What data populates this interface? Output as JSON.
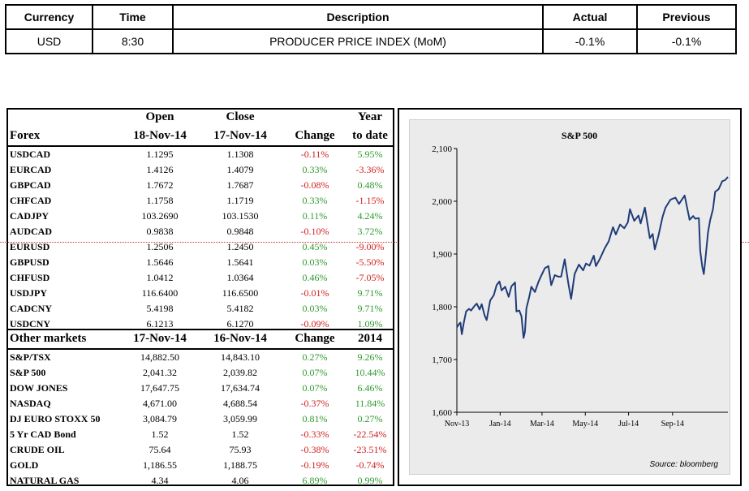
{
  "calendar": {
    "headers": [
      "Currency",
      "Time",
      "Description",
      "Actual",
      "Previous"
    ],
    "row": [
      "USD",
      "8:30",
      "PRODUCER PRICE INDEX (MoM)",
      "-0.1%",
      "-0.1%"
    ]
  },
  "forex": {
    "header_top": {
      "open": "Open",
      "close": "Close",
      "year": "Year"
    },
    "header": {
      "label": "Forex",
      "open": "18-Nov-14",
      "close": "17-Nov-14",
      "change": "Change",
      "ytd": "to date"
    },
    "rows": [
      [
        "USDCAD",
        "1.1295",
        "1.1308",
        "-0.11%",
        "5.95%"
      ],
      [
        "EURCAD",
        "1.4126",
        "1.4079",
        "0.33%",
        "-3.36%"
      ],
      [
        "GBPCAD",
        "1.7672",
        "1.7687",
        "-0.08%",
        "0.48%"
      ],
      [
        "CHFCAD",
        "1.1758",
        "1.1719",
        "0.33%",
        "-1.15%"
      ],
      [
        "CADJPY",
        "103.2690",
        "103.1530",
        "0.11%",
        "4.24%"
      ],
      [
        "AUDCAD",
        "0.9838",
        "0.9848",
        "-0.10%",
        "3.72%"
      ],
      [
        "EURUSD",
        "1.2506",
        "1.2450",
        "0.45%",
        "-9.00%"
      ],
      [
        "GBPUSD",
        "1.5646",
        "1.5641",
        "0.03%",
        "-5.50%"
      ],
      [
        "CHFUSD",
        "1.0412",
        "1.0364",
        "0.46%",
        "-7.05%"
      ],
      [
        "USDJPY",
        "116.6400",
        "116.6500",
        "-0.01%",
        "9.71%"
      ],
      [
        "CADCNY",
        "5.4198",
        "5.4182",
        "0.03%",
        "9.71%"
      ],
      [
        "USDCNY",
        "6.1213",
        "6.1270",
        "-0.09%",
        "1.09%"
      ]
    ]
  },
  "other": {
    "header": {
      "label": "Other markets",
      "open": "17-Nov-14",
      "close": "16-Nov-14",
      "change": "Change",
      "ytd": "2014"
    },
    "rows": [
      [
        "S&P/TSX",
        "14,882.50",
        "14,843.10",
        "0.27%",
        "9.26%"
      ],
      [
        "S&P 500",
        "2,041.32",
        "2,039.82",
        "0.07%",
        "10.44%"
      ],
      [
        "DOW JONES",
        "17,647.75",
        "17,634.74",
        "0.07%",
        "6.46%"
      ],
      [
        "NASDAQ",
        "4,671.00",
        "4,688.54",
        "-0.37%",
        "11.84%"
      ],
      [
        "DJ EURO STOXX 50",
        "3,084.79",
        "3,059.99",
        "0.81%",
        "0.27%"
      ],
      [
        "5 Yr CAD Bond",
        "1.52",
        "1.52",
        "-0.33%",
        "-22.54%"
      ],
      [
        "CRUDE OIL",
        "75.64",
        "75.93",
        "-0.38%",
        "-23.51%"
      ],
      [
        "GOLD",
        "1,186.55",
        "1,188.75",
        "-0.19%",
        "-0.74%"
      ],
      [
        "NATURAL GAS",
        "4.34",
        "4.06",
        "6.89%",
        "0.99%"
      ]
    ]
  },
  "colors": {
    "positive": "#2e9a2e",
    "negative": "#d11f1f",
    "line": "#1f3c78",
    "dotted_guide": "#d93030"
  },
  "chart": {
    "source": "Source: bloomberg"
  },
  "chart_data": {
    "type": "line",
    "title": "S&P 500",
    "xlabel": "",
    "ylabel": "",
    "ylim": [
      1600,
      2100
    ],
    "yticks": [
      1600,
      1700,
      1800,
      1900,
      2000,
      2100
    ],
    "ytick_labels": [
      "1,600",
      "1,700",
      "1,800",
      "1,900",
      "2,000",
      "2,100"
    ],
    "xtick_labels": [
      "Nov-13",
      "Jan-14",
      "Mar-14",
      "May-14",
      "Jul-14",
      "Sep-14"
    ],
    "x_range": [
      "2013-11-01",
      "2014-11-18"
    ],
    "grid": false,
    "series": [
      {
        "x": [
          "2013-11-01",
          "2013-11-04",
          "2013-11-06",
          "2013-11-08",
          "2013-11-11",
          "2013-11-14",
          "2013-11-18",
          "2013-11-21",
          "2013-11-26",
          "2013-11-29",
          "2013-12-03",
          "2013-12-06",
          "2013-12-10",
          "2013-12-13",
          "2013-12-18",
          "2013-12-23",
          "2013-12-27",
          "2013-12-31",
          "2014-01-03",
          "2014-01-08",
          "2014-01-13",
          "2014-01-17",
          "2014-01-22",
          "2014-01-24",
          "2014-01-28",
          "2014-01-31",
          "2014-02-03",
          "2014-02-05",
          "2014-02-07",
          "2014-02-11",
          "2014-02-14",
          "2014-02-19",
          "2014-02-24",
          "2014-02-28",
          "2014-03-05",
          "2014-03-10",
          "2014-03-14",
          "2014-03-19",
          "2014-03-24",
          "2014-03-28",
          "2014-04-02",
          "2014-04-07",
          "2014-04-11",
          "2014-04-16",
          "2014-04-22",
          "2014-04-28",
          "2014-05-02",
          "2014-05-07",
          "2014-05-13",
          "2014-05-16",
          "2014-05-22",
          "2014-05-28",
          "2014-06-03",
          "2014-06-09",
          "2014-06-13",
          "2014-06-19",
          "2014-06-25",
          "2014-06-30",
          "2014-07-03",
          "2014-07-09",
          "2014-07-15",
          "2014-07-18",
          "2014-07-24",
          "2014-07-31",
          "2014-08-04",
          "2014-08-07",
          "2014-08-12",
          "2014-08-18",
          "2014-08-22",
          "2014-08-29",
          "2014-09-05",
          "2014-09-10",
          "2014-09-18",
          "2014-09-25",
          "2014-09-30",
          "2014-10-03",
          "2014-10-08",
          "2014-10-10",
          "2014-10-13",
          "2014-10-15",
          "2014-10-17",
          "2014-10-21",
          "2014-10-24",
          "2014-10-28",
          "2014-10-31",
          "2014-11-05",
          "2014-11-10",
          "2014-11-14",
          "2014-11-18"
        ],
        "values": [
          1761,
          1767,
          1770,
          1748,
          1771,
          1791,
          1796,
          1793,
          1802,
          1806,
          1795,
          1805,
          1784,
          1775,
          1812,
          1822,
          1841,
          1848,
          1831,
          1838,
          1819,
          1839,
          1846,
          1791,
          1793,
          1782,
          1741,
          1753,
          1797,
          1819,
          1838,
          1828,
          1847,
          1859,
          1873,
          1877,
          1841,
          1860,
          1857,
          1857,
          1890,
          1845,
          1815,
          1862,
          1880,
          1869,
          1882,
          1878,
          1897,
          1877,
          1892,
          1910,
          1924,
          1951,
          1937,
          1956,
          1949,
          1960,
          1985,
          1963,
          1973,
          1958,
          1988,
          1930,
          1938,
          1909,
          1934,
          1971,
          1988,
          2003,
          2007,
          1995,
          2011,
          1965,
          1972,
          1967,
          1968,
          1906,
          1875,
          1862,
          1886,
          1941,
          1964,
          1985,
          2018,
          2023,
          2038,
          2040,
          2046
        ]
      }
    ]
  }
}
